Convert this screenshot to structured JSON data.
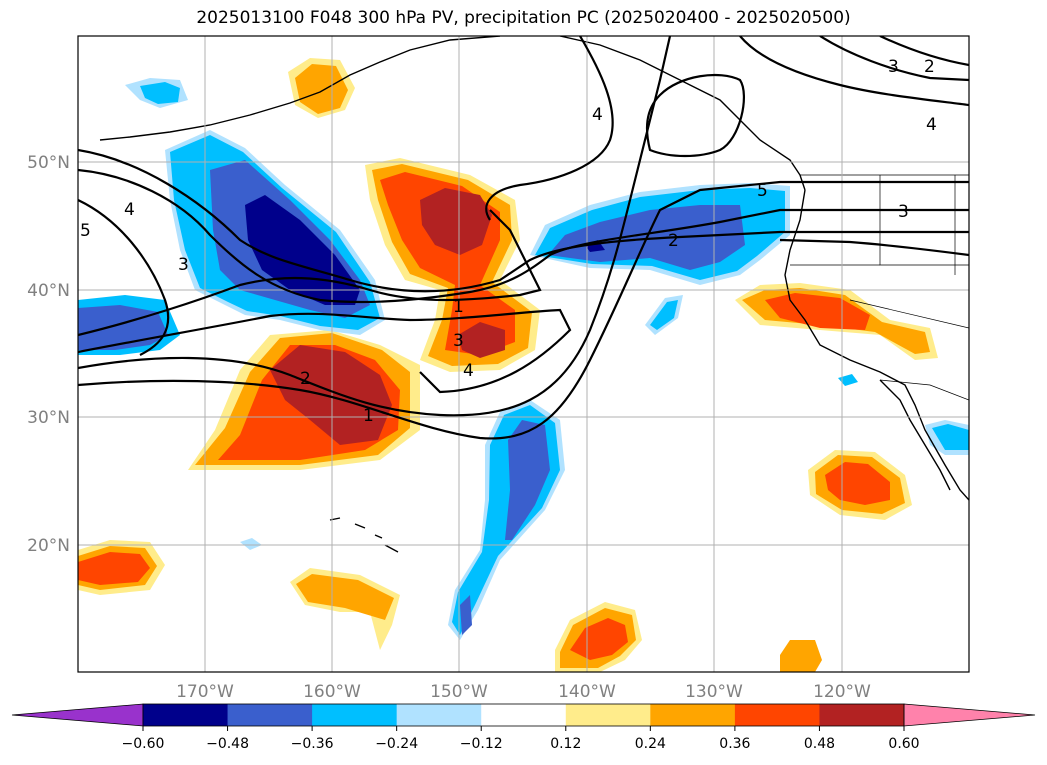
{
  "title": "2025013100 F048 300 hPa PV, precipitation PC (2025020400 - 2025020500)",
  "map": {
    "lat_labels": [
      "50°N",
      "40°N",
      "30°N",
      "20°N"
    ],
    "lon_labels": [
      "170°W",
      "160°W",
      "150°W",
      "140°W",
      "130°W",
      "120°W"
    ],
    "contour_labels": [
      "1",
      "2",
      "3",
      "4",
      "5"
    ]
  },
  "colorbar": {
    "ticks": [
      "−0.60",
      "−0.48",
      "−0.36",
      "−0.24",
      "−0.12",
      "0.12",
      "0.24",
      "0.36",
      "0.48",
      "0.60"
    ],
    "colors": [
      "#9932cc",
      "#00008b",
      "#3a5fcd",
      "#00bfff",
      "#b0e2ff",
      "#ffffff",
      "#ffec8b",
      "#ffa500",
      "#ff4500",
      "#b22222",
      "#ff82ab"
    ]
  }
}
